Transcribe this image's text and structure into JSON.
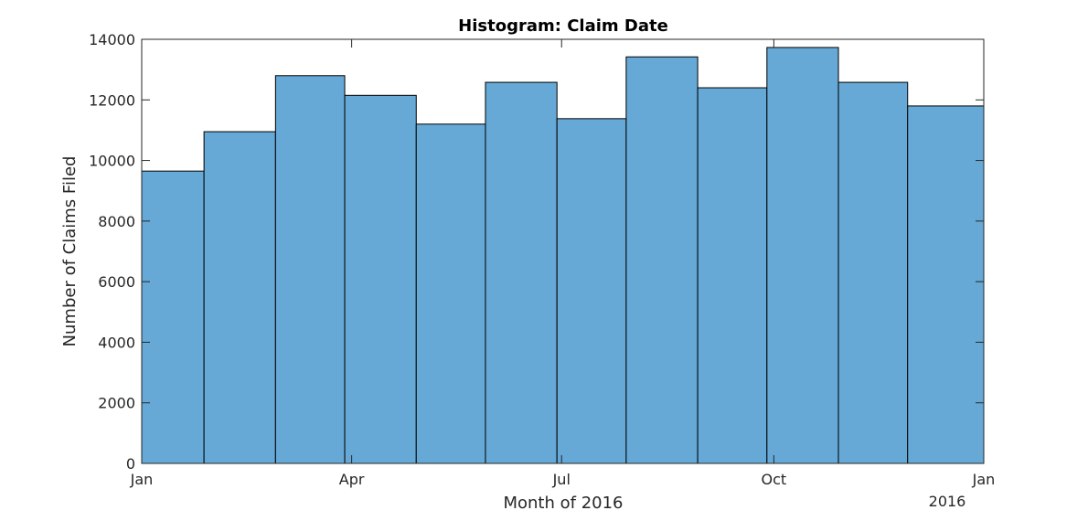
{
  "chart_data": {
    "type": "bar",
    "title": "Histogram: Claim Date",
    "xlabel": "Month of 2016",
    "ylabel": "Number of Claims Filed",
    "x_secondary_label": "2016",
    "bin_edges": [
      "2016-01-01",
      "2016-01-28",
      "2016-02-28",
      "2016-03-29",
      "2016-04-29",
      "2016-05-29",
      "2016-06-29",
      "2016-07-29",
      "2016-08-29",
      "2016-09-28",
      "2016-10-29",
      "2016-11-28",
      "2016-12-31"
    ],
    "values": [
      9650,
      10950,
      12800,
      12150,
      11200,
      12580,
      11380,
      13420,
      12400,
      13730,
      12580,
      11800
    ],
    "x_ticks": [
      {
        "label": "Jan",
        "date": "2016-01-01"
      },
      {
        "label": "Apr",
        "date": "2016-04-01"
      },
      {
        "label": "Jul",
        "date": "2016-07-01"
      },
      {
        "label": "Oct",
        "date": "2016-10-01"
      },
      {
        "label": "Jan",
        "date": "2016-12-31"
      }
    ],
    "y_ticks": [
      0,
      2000,
      4000,
      6000,
      8000,
      10000,
      12000,
      14000
    ],
    "xlim": [
      "2016-01-01",
      "2016-12-31"
    ],
    "ylim": [
      0,
      14000
    ],
    "grid": false,
    "bar_color": "#66a9d6",
    "edge_color": "#000000"
  }
}
